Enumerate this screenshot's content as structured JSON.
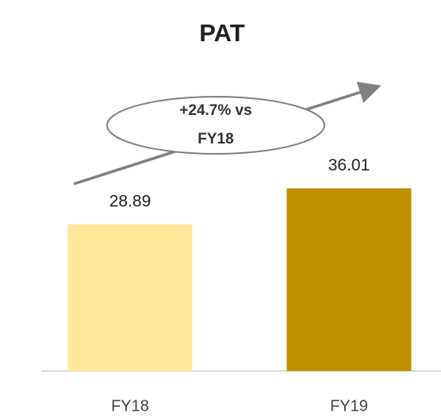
{
  "chart_data": {
    "type": "bar",
    "title": "PAT",
    "categories": [
      "FY18",
      "FY19"
    ],
    "values": [
      28.89,
      36.01
    ],
    "colors": [
      "#FFE699",
      "#BF9000"
    ],
    "ylim": [
      0,
      40
    ],
    "annotation": "+24.7% vs FY18"
  }
}
